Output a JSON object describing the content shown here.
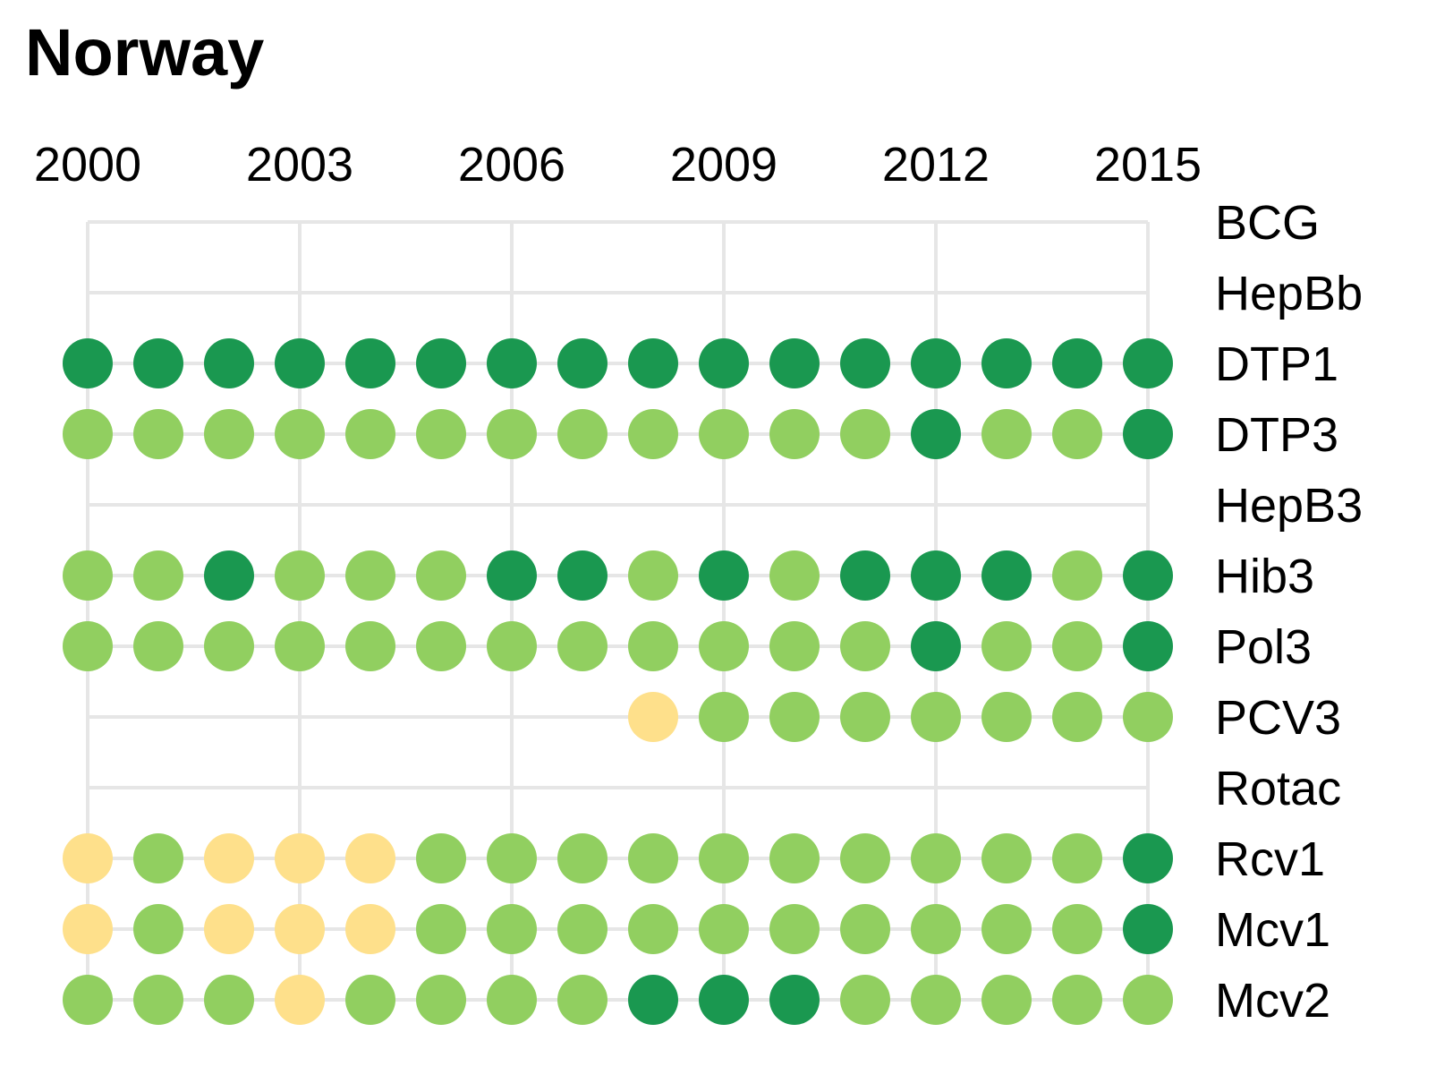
{
  "chart_data": {
    "type": "heatmap",
    "title": "Norway",
    "xlabel": "",
    "ylabel": "",
    "x": [
      2000,
      2001,
      2002,
      2003,
      2004,
      2005,
      2006,
      2007,
      2008,
      2009,
      2010,
      2011,
      2012,
      2013,
      2014,
      2015
    ],
    "x_tick_labels": [
      "2000",
      "2003",
      "2006",
      "2009",
      "2012",
      "2015"
    ],
    "grid": true,
    "legend": "none",
    "colors": {
      "D": "#1a9850",
      "L": "#91cf60",
      "Y": "#fee08b"
    },
    "rows": [
      {
        "name": "BCG",
        "values": ""
      },
      {
        "name": "HepBb",
        "values": ""
      },
      {
        "name": "DTP1",
        "values": "DDDDDDDDDDDDDDDD"
      },
      {
        "name": "DTP3",
        "values": "LLLLLLLLLLLLDLLD"
      },
      {
        "name": "HepB3",
        "values": ""
      },
      {
        "name": "Hib3",
        "values": "LLDLLLDDLDLDDDLD"
      },
      {
        "name": "Pol3",
        "values": "LLLLLLLLLLLLDLLD"
      },
      {
        "name": "PCV3",
        "values": "--------YLLLLLLL"
      },
      {
        "name": "Rotac",
        "values": ""
      },
      {
        "name": "Rcv1",
        "values": "YLYYYLLLLLLLLLLD"
      },
      {
        "name": "Mcv1",
        "values": "YLYYYLLLLLLLLLLD"
      },
      {
        "name": "Mcv2",
        "values": "LLLYLLLLDDDLLLLL"
      }
    ]
  }
}
